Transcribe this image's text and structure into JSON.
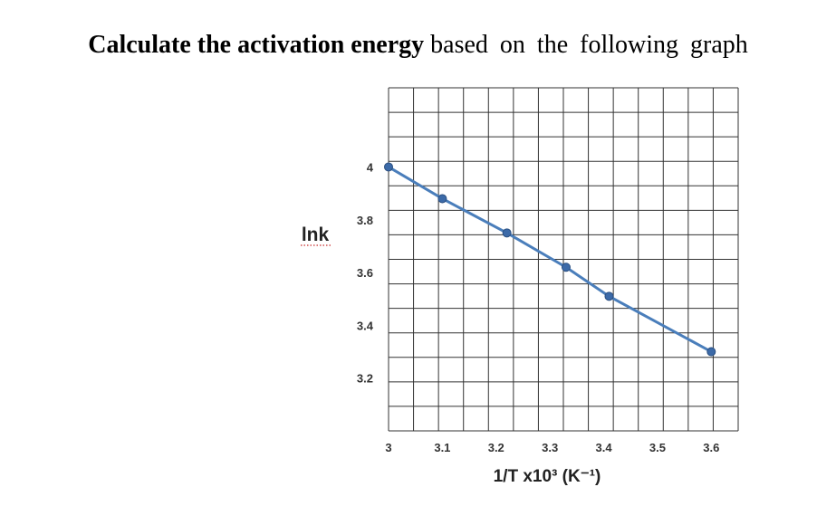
{
  "question": {
    "bold_part": "Calculate the activation energy",
    "rest": "based on the following graph"
  },
  "chart_data": {
    "type": "line",
    "xlabel": "1/T x10³ (K⁻¹)",
    "ylabel": "lnk",
    "xlim": [
      3.0,
      3.65
    ],
    "ylim": [
      3.0,
      4.3
    ],
    "x_ticks": [
      3,
      3.1,
      3.2,
      3.3,
      3.4,
      3.5,
      3.6
    ],
    "x_tick_labels": [
      "3",
      "3.1",
      "3.2",
      "3.3",
      "3.4",
      "3.5",
      "3.6"
    ],
    "y_ticks": [
      3.2,
      3.4,
      3.6,
      3.8,
      4.0
    ],
    "y_tick_labels": [
      "3.2",
      "3.4",
      "3.6",
      "3.8",
      "4"
    ],
    "grid": true,
    "series": [
      {
        "x": [
          3.0,
          3.1,
          3.22,
          3.33,
          3.41,
          3.6
        ],
        "y": [
          4.0,
          3.88,
          3.75,
          3.62,
          3.51,
          3.3
        ],
        "color": "#4a7ebb",
        "marker_color": "#3c6aa8"
      }
    ]
  }
}
